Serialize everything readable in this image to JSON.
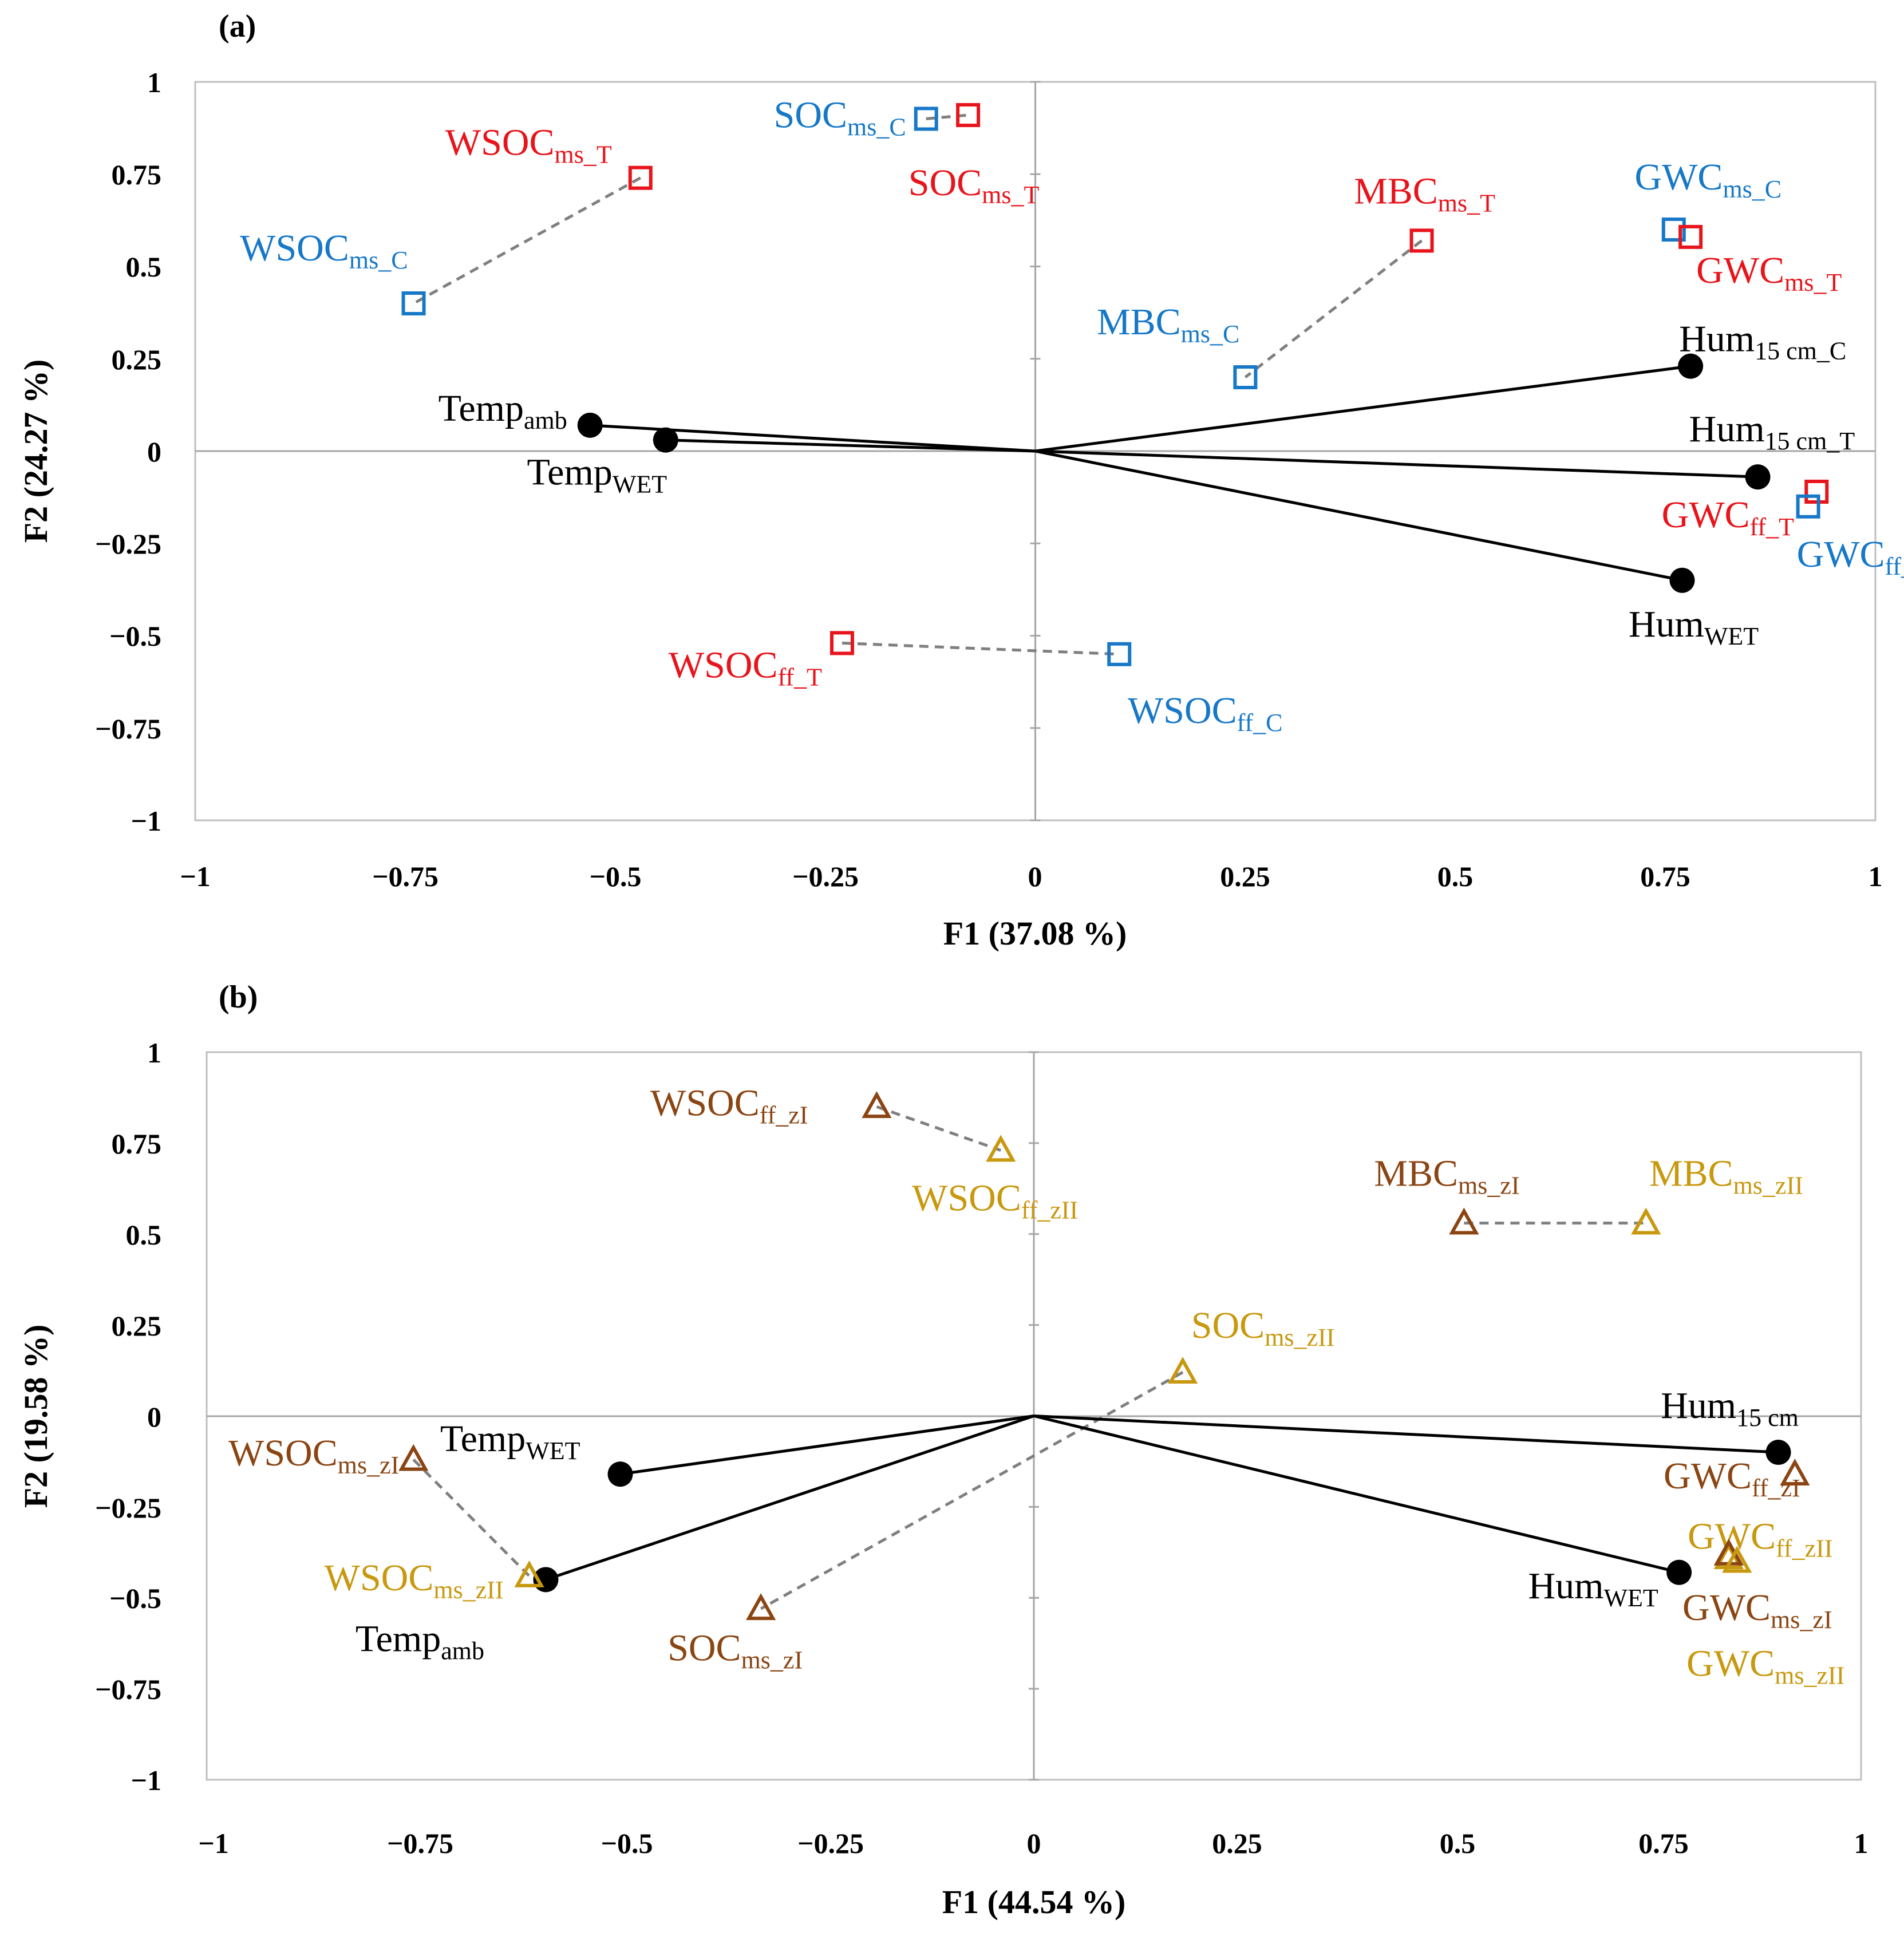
{
  "colors": {
    "treatment_T": "#e8141b",
    "control_C": "#1778c8",
    "zone_zI": "#8b4513",
    "zone_zII": "#c8980e",
    "vector": "#000000",
    "pair_line": "#7f7f7f",
    "axis": "#a6a6a6"
  },
  "chart_data": [
    {
      "type": "scatter",
      "panel_label": "(a)",
      "xlabel": "F1 (37.08 %)",
      "ylabel": "F2 (24.27 %)",
      "xlim": [
        -1,
        1
      ],
      "ylim": [
        -1,
        1
      ],
      "xticks": [
        "−1",
        "−0.75",
        "−0.5",
        "−0.25",
        "0",
        "0.25",
        "0.5",
        "0.75",
        "1"
      ],
      "yticks": [
        "1",
        "0.75",
        "0.5",
        "0.25",
        "0",
        "−0.25",
        "−0.5",
        "−0.75",
        "−1"
      ],
      "vectors": [
        {
          "id": "temp-amb",
          "x": -0.53,
          "y": 0.07,
          "label": "Temp",
          "sub": "amb"
        },
        {
          "id": "temp-wet",
          "x": -0.44,
          "y": 0.03,
          "label": "Temp",
          "sub": "WET"
        },
        {
          "id": "hum-15cm-c",
          "x": 0.78,
          "y": 0.23,
          "label": "Hum",
          "sub": "15 cm_C"
        },
        {
          "id": "hum-15cm-t",
          "x": 0.86,
          "y": -0.07,
          "label": "Hum",
          "sub": "15 cm_T"
        },
        {
          "id": "hum-wet",
          "x": 0.77,
          "y": -0.35,
          "label": "Hum",
          "sub": "WET"
        }
      ],
      "points": [
        {
          "id": "wsoc-ms-t",
          "group": "T",
          "x": -0.47,
          "y": 0.74,
          "label": "WSOC",
          "sub": "ms_T"
        },
        {
          "id": "wsoc-ms-c",
          "group": "C",
          "x": -0.74,
          "y": 0.4,
          "label": "WSOC",
          "sub": "ms_C"
        },
        {
          "id": "soc-ms-c",
          "group": "C",
          "x": -0.13,
          "y": 0.9,
          "label": "SOC",
          "sub": "ms_C"
        },
        {
          "id": "soc-ms-t",
          "group": "T",
          "x": -0.08,
          "y": 0.91,
          "label": "SOC",
          "sub": "ms_T"
        },
        {
          "id": "mbc-ms-t",
          "group": "T",
          "x": 0.46,
          "y": 0.57,
          "label": "MBC",
          "sub": "ms_T"
        },
        {
          "id": "mbc-ms-c",
          "group": "C",
          "x": 0.25,
          "y": 0.2,
          "label": "MBC",
          "sub": "ms_C"
        },
        {
          "id": "gwc-ms-c",
          "group": "C",
          "x": 0.76,
          "y": 0.6,
          "label": "GWC",
          "sub": "ms_C"
        },
        {
          "id": "gwc-ms-t",
          "group": "T",
          "x": 0.78,
          "y": 0.58,
          "label": "GWC",
          "sub": "ms_T"
        },
        {
          "id": "gwc-ff-t",
          "group": "T",
          "x": 0.93,
          "y": -0.11,
          "label": "GWC",
          "sub": "ff_T"
        },
        {
          "id": "gwc-ff-c",
          "group": "C",
          "x": 0.92,
          "y": -0.15,
          "label": "GWC",
          "sub": "ff_C"
        },
        {
          "id": "wsoc-ff-t",
          "group": "T",
          "x": -0.23,
          "y": -0.52,
          "label": "WSOC",
          "sub": "ff_T"
        },
        {
          "id": "wsoc-ff-c",
          "group": "C",
          "x": 0.1,
          "y": -0.55,
          "label": "WSOC",
          "sub": "ff_C"
        }
      ],
      "pairs": [
        [
          "wsoc-ms-t",
          "wsoc-ms-c"
        ],
        [
          "soc-ms-c",
          "soc-ms-t"
        ],
        [
          "mbc-ms-t",
          "mbc-ms-c"
        ],
        [
          "wsoc-ff-t",
          "wsoc-ff-c"
        ]
      ]
    },
    {
      "type": "scatter",
      "panel_label": "(b)",
      "xlabel": "F1 (44.54 %)",
      "ylabel": "F2 (19.58 %)",
      "xlim": [
        -1,
        1
      ],
      "ylim": [
        -1,
        1
      ],
      "xticks": [
        "−1",
        "−0.75",
        "−0.5",
        "−0.25",
        "0",
        "0.25",
        "0.5",
        "0.75",
        "1"
      ],
      "yticks": [
        "1",
        "0.75",
        "0.5",
        "0.25",
        "0",
        "−0.25",
        "−0.5",
        "−0.75",
        "−1"
      ],
      "vectors": [
        {
          "id": "temp-wet",
          "x": -0.5,
          "y": -0.16,
          "label": "Temp",
          "sub": "WET"
        },
        {
          "id": "temp-amb",
          "x": -0.59,
          "y": -0.45,
          "label": "Temp",
          "sub": "amb"
        },
        {
          "id": "hum-15cm",
          "x": 0.9,
          "y": -0.1,
          "label": "Hum",
          "sub": "15 cm"
        },
        {
          "id": "hum-wet",
          "x": 0.78,
          "y": -0.43,
          "label": "Hum",
          "sub": "WET"
        }
      ],
      "points": [
        {
          "id": "wsoc-ff-zi",
          "group": "zI",
          "x": -0.19,
          "y": 0.85,
          "label": "WSOC",
          "sub": "ff_zI"
        },
        {
          "id": "wsoc-ff-zii",
          "group": "zII",
          "x": -0.04,
          "y": 0.73,
          "label": "WSOC",
          "sub": "ff_zII"
        },
        {
          "id": "mbc-ms-zi",
          "group": "zI",
          "x": 0.52,
          "y": 0.53,
          "label": "MBC",
          "sub": "ms_zI"
        },
        {
          "id": "mbc-ms-zii",
          "group": "zII",
          "x": 0.74,
          "y": 0.53,
          "label": "MBC",
          "sub": "ms_zII"
        },
        {
          "id": "soc-ms-zii",
          "group": "zII",
          "x": 0.18,
          "y": 0.12,
          "label": "SOC",
          "sub": "ms_zII"
        },
        {
          "id": "soc-ms-zi",
          "group": "zI",
          "x": -0.33,
          "y": -0.53,
          "label": "SOC",
          "sub": "ms_zI"
        },
        {
          "id": "wsoc-ms-zi",
          "group": "zI",
          "x": -0.75,
          "y": -0.12,
          "label": "WSOC",
          "sub": "ms_zI"
        },
        {
          "id": "wsoc-ms-zii",
          "group": "zII",
          "x": -0.61,
          "y": -0.44,
          "label": "WSOC",
          "sub": "ms_zII"
        },
        {
          "id": "gwc-ff-zi",
          "group": "zI",
          "x": 0.92,
          "y": -0.16,
          "label": "GWC",
          "sub": "ff_zI"
        },
        {
          "id": "gwc-ff-zii",
          "group": "zII",
          "x": 0.84,
          "y": -0.39,
          "label": "GWC",
          "sub": "ff_zII"
        },
        {
          "id": "gwc-ms-zi",
          "group": "zI",
          "x": 0.84,
          "y": -0.38,
          "label": "GWC",
          "sub": "ms_zI"
        },
        {
          "id": "gwc-ms-zii",
          "group": "zII",
          "x": 0.85,
          "y": -0.4,
          "label": "GWC",
          "sub": "ms_zII"
        }
      ],
      "pairs": [
        [
          "wsoc-ff-zi",
          "wsoc-ff-zii"
        ],
        [
          "mbc-ms-zi",
          "mbc-ms-zii"
        ],
        [
          "soc-ms-zii",
          "soc-ms-zi"
        ],
        [
          "wsoc-ms-zi",
          "wsoc-ms-zii"
        ]
      ]
    }
  ]
}
